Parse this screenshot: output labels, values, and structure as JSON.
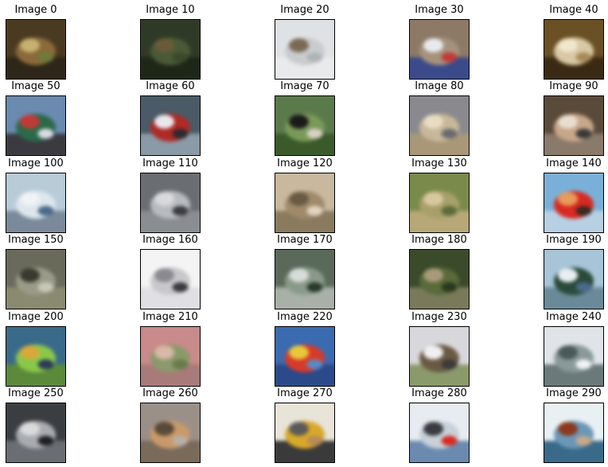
{
  "figure": {
    "images": [
      {
        "title": "Image 0",
        "subject": "frog",
        "colors": [
          "#4a3a22",
          "#8a6a3a",
          "#c8b070",
          "#6e7a3a",
          "#2e2618"
        ]
      },
      {
        "title": "Image 10",
        "subject": "deer",
        "colors": [
          "#2f3a26",
          "#4a5a36",
          "#6a5a3a",
          "#3a4a2a",
          "#1e2618"
        ]
      },
      {
        "title": "Image 20",
        "subject": "deer",
        "colors": [
          "#dfe2e4",
          "#c9ccce",
          "#7a6a54",
          "#b0b4b6",
          "#e8eaec"
        ]
      },
      {
        "title": "Image 30",
        "subject": "airplane",
        "colors": [
          "#8c7a66",
          "#a6927c",
          "#e8eaf0",
          "#c23a36",
          "#3a4a8a"
        ]
      },
      {
        "title": "Image 40",
        "subject": "dog",
        "colors": [
          "#6a5024",
          "#d8c8a4",
          "#f0e6cc",
          "#a88a5a",
          "#3a2a14"
        ]
      },
      {
        "title": "Image 50",
        "subject": "truck",
        "colors": [
          "#6a8ab0",
          "#2a6a4a",
          "#c23a36",
          "#d8dce4",
          "#3a3a40"
        ]
      },
      {
        "title": "Image 60",
        "subject": "automobile",
        "colors": [
          "#4a5a66",
          "#b02a26",
          "#e8e8ec",
          "#2a2a2e",
          "#8a9aa6"
        ]
      },
      {
        "title": "Image 70",
        "subject": "dog",
        "colors": [
          "#5a7a4a",
          "#7a9a5a",
          "#1a1a1a",
          "#d8d0c4",
          "#3a5a2a"
        ]
      },
      {
        "title": "Image 80",
        "subject": "cat",
        "colors": [
          "#8a8a8e",
          "#c8b89a",
          "#e8dcc4",
          "#6a6a70",
          "#a89878"
        ]
      },
      {
        "title": "Image 90",
        "subject": "bird",
        "colors": [
          "#5a4a3a",
          "#c8a68a",
          "#e8ddd0",
          "#3a3a3a",
          "#8a7a6a"
        ]
      },
      {
        "title": "Image 100",
        "subject": "ship",
        "colors": [
          "#b8ccd8",
          "#dce6ec",
          "#f0f2f4",
          "#4a6a8a",
          "#7a8a9a"
        ]
      },
      {
        "title": "Image 110",
        "subject": "truck",
        "colors": [
          "#6a6e72",
          "#b8bcc0",
          "#d8dadc",
          "#3a3c40",
          "#8a8e92"
        ]
      },
      {
        "title": "Image 120",
        "subject": "bird",
        "colors": [
          "#c8b89e",
          "#a08a6a",
          "#6a5a44",
          "#e0d4c0",
          "#8a7a5e"
        ]
      },
      {
        "title": "Image 130",
        "subject": "deer",
        "colors": [
          "#7a8a4a",
          "#a8a06a",
          "#d8c8a0",
          "#5a6a3a",
          "#b8a878"
        ]
      },
      {
        "title": "Image 140",
        "subject": "automobile",
        "colors": [
          "#7ab0d8",
          "#d82a22",
          "#e89a5a",
          "#3a2a22",
          "#b8d0e4"
        ]
      },
      {
        "title": "Image 150",
        "subject": "cat",
        "colors": [
          "#6a6a5a",
          "#9a9a88",
          "#3a3a30",
          "#c8c8b8",
          "#8a8a70"
        ]
      },
      {
        "title": "Image 160",
        "subject": "automobile",
        "colors": [
          "#f4f4f4",
          "#c8c8cc",
          "#8a8a90",
          "#3a3a40",
          "#e0e0e4"
        ]
      },
      {
        "title": "Image 170",
        "subject": "ship",
        "colors": [
          "#5a6a5a",
          "#8a9a8a",
          "#d8dcd8",
          "#2a3a2a",
          "#a8b0a8"
        ]
      },
      {
        "title": "Image 180",
        "subject": "deer",
        "colors": [
          "#3a4a2a",
          "#5a6a3a",
          "#a89a7a",
          "#2a3a1e",
          "#7a7a5a"
        ]
      },
      {
        "title": "Image 190",
        "subject": "ship",
        "colors": [
          "#a8c4d8",
          "#2a4a3a",
          "#e8eef2",
          "#4a6a8a",
          "#6a8a9a"
        ]
      },
      {
        "title": "Image 200",
        "subject": "frog",
        "colors": [
          "#3a6a8a",
          "#8ac84a",
          "#d8a83a",
          "#2a3a5a",
          "#5a8a3a"
        ]
      },
      {
        "title": "Image 210",
        "subject": "frog",
        "colors": [
          "#c88a8a",
          "#8a9a6a",
          "#d8b8a8",
          "#6a7a4a",
          "#a87a7a"
        ]
      },
      {
        "title": "Image 220",
        "subject": "airplane",
        "colors": [
          "#3a6ab0",
          "#d83a2a",
          "#e8c83a",
          "#5a8ac8",
          "#2a4a8a"
        ]
      },
      {
        "title": "Image 230",
        "subject": "horse",
        "colors": [
          "#d8d8dc",
          "#6a5a44",
          "#f0f0f2",
          "#3a3a3a",
          "#8a9a6a"
        ]
      },
      {
        "title": "Image 240",
        "subject": "ship",
        "colors": [
          "#e0e4e8",
          "#8a9a9a",
          "#4a5a5a",
          "#f0f2f4",
          "#6a7a7a"
        ]
      },
      {
        "title": "Image 250",
        "subject": "automobile",
        "colors": [
          "#3a3e42",
          "#a8acb0",
          "#d8dadc",
          "#1e2024",
          "#6a6e72"
        ]
      },
      {
        "title": "Image 260",
        "subject": "dog",
        "colors": [
          "#9a9088",
          "#c89a6a",
          "#5a4a3a",
          "#b8b0a8",
          "#7a6a5a"
        ]
      },
      {
        "title": "Image 270",
        "subject": "truck",
        "colors": [
          "#e8e4d8",
          "#d8a82a",
          "#5a5a5a",
          "#b88a5a",
          "#3a3a3a"
        ]
      },
      {
        "title": "Image 280",
        "subject": "ship",
        "colors": [
          "#e8ecf0",
          "#c8d0d8",
          "#3a3a40",
          "#d82a22",
          "#6a8ab0"
        ]
      },
      {
        "title": "Image 290",
        "subject": "ship",
        "colors": [
          "#e8f0f4",
          "#6a98b8",
          "#8a3a1e",
          "#c8a88a",
          "#3a6a8a"
        ]
      }
    ]
  }
}
